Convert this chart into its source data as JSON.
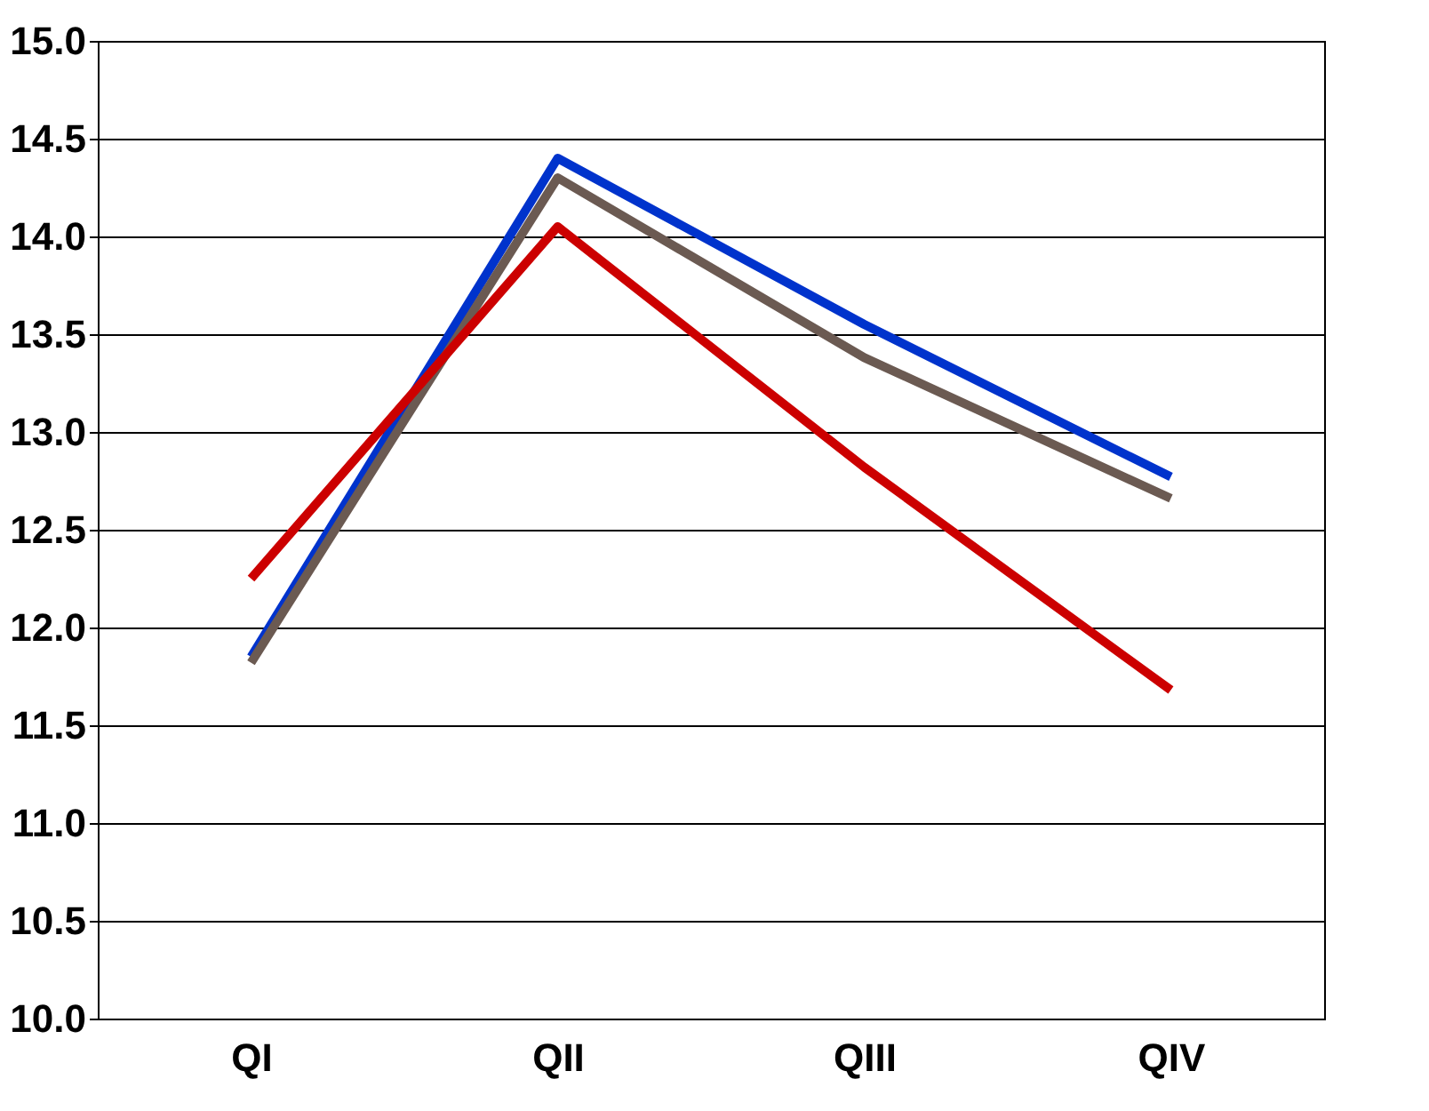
{
  "chart_data": {
    "type": "line",
    "categories": [
      "QI",
      "QII",
      "QIII",
      "QIV"
    ],
    "series": [
      {
        "color": "#0033cc",
        "values": [
          11.85,
          14.4,
          13.55,
          12.77
        ]
      },
      {
        "color": "#6b5a52",
        "values": [
          11.82,
          14.3,
          13.38,
          12.66
        ]
      },
      {
        "color": "#cc0000",
        "values": [
          12.25,
          14.05,
          12.82,
          11.68
        ]
      }
    ],
    "ylim": [
      10.0,
      15.0
    ],
    "yticks": [
      {
        "value": 10,
        "label": "10.0"
      },
      {
        "value": 10.5,
        "label": "10.5"
      },
      {
        "value": 11,
        "label": "11.0"
      },
      {
        "value": 11.5,
        "label": "11.5"
      },
      {
        "value": 12,
        "label": "12.0"
      },
      {
        "value": 12.5,
        "label": "12.5"
      },
      {
        "value": 13,
        "label": "13.0"
      },
      {
        "value": 13.5,
        "label": "13.5"
      },
      {
        "value": 14,
        "label": "14.0"
      },
      {
        "value": 14.5,
        "label": "14.5"
      },
      {
        "value": 15,
        "label": "15.0"
      }
    ],
    "grid": "y",
    "marker": "none",
    "line_style": "solid"
  }
}
